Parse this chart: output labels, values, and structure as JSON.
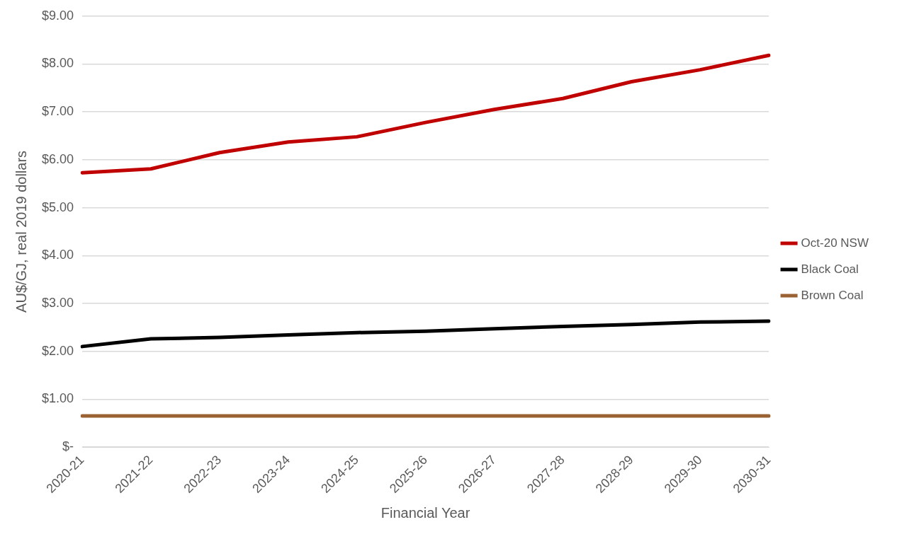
{
  "chart_data": {
    "type": "line",
    "xlabel": "Financial Year",
    "ylabel": "AU$/GJ, real 2019 dollars",
    "categories": [
      "2020-21",
      "2021-22",
      "2022-23",
      "2023-24",
      "2024-25",
      "2025-26",
      "2026-27",
      "2027-28",
      "2028-29",
      "2029-30",
      "2030-31"
    ],
    "series": [
      {
        "name": "Oct-20 NSW",
        "color": "#c00000",
        "values": [
          5.73,
          5.81,
          6.15,
          6.37,
          6.48,
          6.78,
          7.05,
          7.28,
          7.63,
          7.88,
          8.18
        ]
      },
      {
        "name": "Black Coal",
        "color": "#000000",
        "values": [
          2.1,
          2.26,
          2.29,
          2.34,
          2.39,
          2.42,
          2.47,
          2.52,
          2.56,
          2.61,
          2.63
        ]
      },
      {
        "name": "Brown Coal",
        "color": "#9a6233",
        "values": [
          0.65,
          0.65,
          0.65,
          0.65,
          0.65,
          0.65,
          0.65,
          0.65,
          0.65,
          0.65,
          0.65
        ]
      }
    ],
    "ylim": [
      0,
      9
    ],
    "yticks": [
      {
        "value": 0,
        "label": "$-"
      },
      {
        "value": 1,
        "label": "$1.00"
      },
      {
        "value": 2,
        "label": "$2.00"
      },
      {
        "value": 3,
        "label": "$3.00"
      },
      {
        "value": 4,
        "label": "$4.00"
      },
      {
        "value": 5,
        "label": "$5.00"
      },
      {
        "value": 6,
        "label": "$6.00"
      },
      {
        "value": 7,
        "label": "$7.00"
      },
      {
        "value": 8,
        "label": "$8.00"
      },
      {
        "value": 9,
        "label": "$9.00"
      }
    ],
    "grid": "y",
    "legend": "right",
    "marker": "none",
    "line_style": "solid"
  }
}
